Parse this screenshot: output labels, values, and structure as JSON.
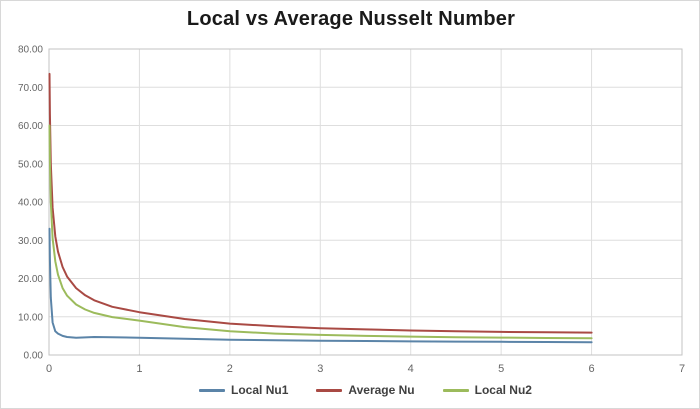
{
  "page": {
    "title": "Local vs Average Nusselt Number"
  },
  "chart_data": {
    "type": "line",
    "title": "Local vs Average Nusselt Number",
    "xlabel": "",
    "ylabel": "",
    "xlim": [
      0,
      7
    ],
    "ylim": [
      0,
      80
    ],
    "grid": true,
    "legend_position": "bottom",
    "x_ticks": [
      "0",
      "1",
      "2",
      "3",
      "4",
      "5",
      "6",
      "7"
    ],
    "y_ticks": [
      "0.00",
      "10.00",
      "20.00",
      "30.00",
      "40.00",
      "50.00",
      "60.00",
      "70.00",
      "80.00"
    ],
    "x": [
      0.005,
      0.01,
      0.02,
      0.04,
      0.07,
      0.1,
      0.15,
      0.2,
      0.3,
      0.4,
      0.5,
      0.7,
      1.0,
      1.5,
      2.0,
      2.5,
      3.0,
      3.5,
      4.0,
      4.5,
      5.0,
      5.5,
      6.0
    ],
    "series": [
      {
        "name": "Local Nu1",
        "color": "#5B84A8",
        "values": [
          33,
          25,
          15,
          8.5,
          6.2,
          5.6,
          5.0,
          4.7,
          4.5,
          4.6,
          4.7,
          4.65,
          4.5,
          4.25,
          4.0,
          3.85,
          3.75,
          3.65,
          3.55,
          3.5,
          3.45,
          3.4,
          3.35
        ]
      },
      {
        "name": "Average Nu",
        "color": "#A94A44",
        "values": [
          73.5,
          63,
          50,
          38.5,
          31,
          27,
          23,
          20.5,
          17.5,
          15.6,
          14.3,
          12.6,
          11.2,
          9.4,
          8.2,
          7.5,
          7.0,
          6.7,
          6.4,
          6.2,
          6.05,
          5.95,
          5.85
        ]
      },
      {
        "name": "Local Nu2",
        "color": "#9CBB5C",
        "values": [
          60,
          51,
          40,
          30.5,
          24.5,
          21,
          17.5,
          15.5,
          13.2,
          11.9,
          11.0,
          9.9,
          9.0,
          7.3,
          6.2,
          5.6,
          5.25,
          5.0,
          4.8,
          4.65,
          4.55,
          4.45,
          4.4
        ]
      }
    ]
  }
}
